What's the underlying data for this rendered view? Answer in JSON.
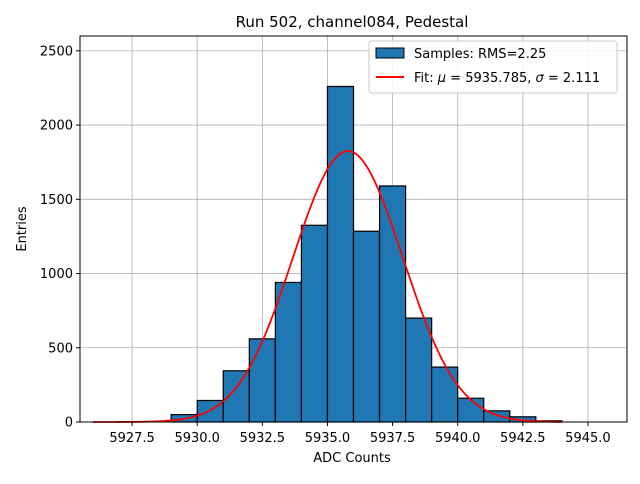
{
  "chart_data": {
    "type": "bar",
    "title": "Run 502, channel084, Pedestal",
    "xlabel": "ADC Counts",
    "ylabel": "Entries",
    "xlim": [
      5925.5,
      5946.5
    ],
    "ylim": [
      0,
      2600
    ],
    "grid": true,
    "legend_placement": "top-right",
    "xticks": [
      "5927.5",
      "5930.0",
      "5932.5",
      "5935.0",
      "5937.5",
      "5940.0",
      "5942.5",
      "5945.0"
    ],
    "yticks": [
      "0",
      "500",
      "1000",
      "1500",
      "2000",
      "2500"
    ],
    "bin_width": 1,
    "bins": [
      {
        "left": 5929,
        "value": 50
      },
      {
        "left": 5930,
        "value": 145
      },
      {
        "left": 5931,
        "value": 345
      },
      {
        "left": 5932,
        "value": 560
      },
      {
        "left": 5933,
        "value": 940
      },
      {
        "left": 5934,
        "value": 1325
      },
      {
        "left": 5935,
        "value": 2260
      },
      {
        "left": 5936,
        "value": 1285
      },
      {
        "left": 5937,
        "value": 1590
      },
      {
        "left": 5938,
        "value": 700
      },
      {
        "left": 5939,
        "value": 370
      },
      {
        "left": 5940,
        "value": 160
      },
      {
        "left": 5941,
        "value": 75
      },
      {
        "left": 5942,
        "value": 35
      },
      {
        "left": 5943,
        "value": 8
      }
    ],
    "series": [
      {
        "name": "Samples: RMS=2.25",
        "kind": "histogram",
        "color": "#1f77b4",
        "edgecolor": "#000000"
      },
      {
        "name": "Fit: μ = 5935.785, σ = 2.111",
        "kind": "gaussian-fit",
        "color": "#ff0000",
        "mu": 5935.785,
        "sigma": 2.111,
        "amplitude": 1825,
        "x_range": [
          5926,
          5944
        ]
      }
    ]
  }
}
